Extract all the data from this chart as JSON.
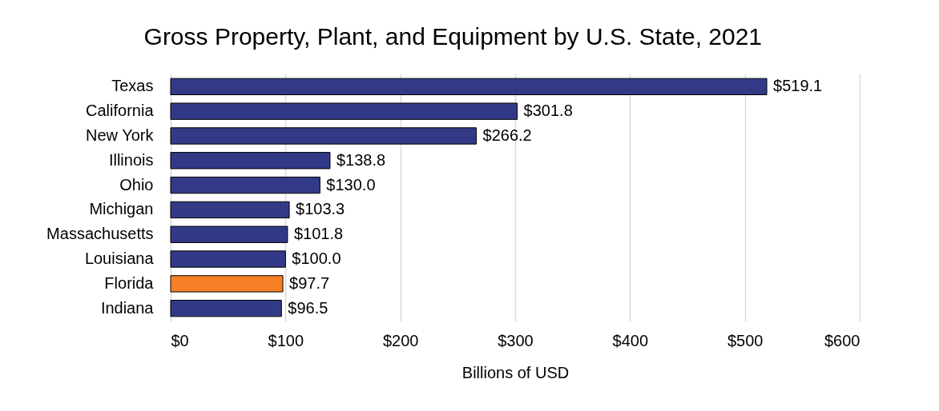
{
  "chart_data": {
    "type": "bar",
    "orientation": "horizontal",
    "title": "Gross Property, Plant, and Equipment by U.S. State, 2021",
    "xlabel": "Billions of USD",
    "categories": [
      "Texas",
      "California",
      "New York",
      "Illinois",
      "Ohio",
      "Michigan",
      "Massachusetts",
      "Louisiana",
      "Florida",
      "Indiana"
    ],
    "values": [
      519.1,
      301.8,
      266.2,
      138.8,
      130.0,
      103.3,
      101.8,
      100.0,
      97.7,
      96.5
    ],
    "colors": [
      "#323a87",
      "#323a87",
      "#323a87",
      "#323a87",
      "#323a87",
      "#323a87",
      "#323a87",
      "#323a87",
      "#f58025",
      "#323a87"
    ],
    "value_labels": [
      "$519.1",
      "$301.8",
      "$266.2",
      "$138.8",
      "$130.0",
      "$103.3",
      "$101.8",
      "$100.0",
      "$97.7",
      "$96.5"
    ],
    "xlim": [
      0,
      600
    ],
    "xticks": [
      {
        "value": 0,
        "label": "$0"
      },
      {
        "value": 100,
        "label": "$100"
      },
      {
        "value": 200,
        "label": "$200"
      },
      {
        "value": 300,
        "label": "$300"
      },
      {
        "value": 400,
        "label": "$400"
      },
      {
        "value": 500,
        "label": "$500"
      },
      {
        "value": 600,
        "label": "$600"
      }
    ],
    "grid": "x"
  }
}
